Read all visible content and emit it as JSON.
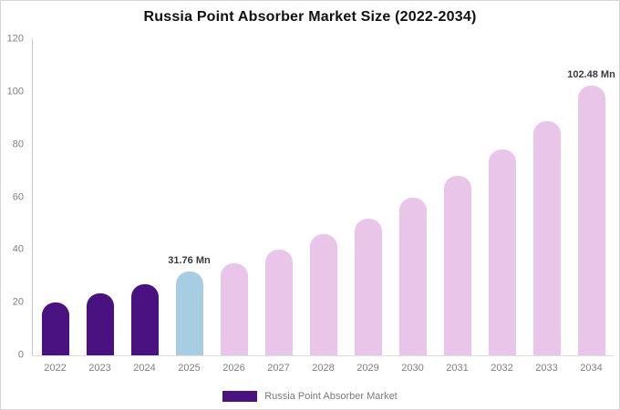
{
  "title": "Russia Point Absorber Market Size (2022-2034)",
  "legend": {
    "label": "Russia Point Absorber Market",
    "color": "#4a1280"
  },
  "chart_data": {
    "type": "bar",
    "title": "Russia Point Absorber Market Size (2022-2034)",
    "xlabel": "",
    "ylabel": "",
    "categories": [
      "2022",
      "2023",
      "2024",
      "2025",
      "2026",
      "2027",
      "2028",
      "2029",
      "2030",
      "2031",
      "2032",
      "2033",
      "2034"
    ],
    "values": [
      20,
      23.5,
      27,
      31.76,
      35,
      40,
      46,
      52,
      60,
      68,
      78,
      89,
      102.48
    ],
    "value_labels": [
      "",
      "",
      "",
      "31.76 Mn",
      "",
      "",
      "",
      "",
      "",
      "",
      "",
      "",
      "102.48 Mn"
    ],
    "bar_colors": [
      "#4a1280",
      "#4a1280",
      "#4a1280",
      "#a7cde2",
      "#e9c6e9",
      "#e9c6e9",
      "#e9c6e9",
      "#e9c6e9",
      "#e9c6e9",
      "#e9c6e9",
      "#e9c6e9",
      "#e9c6e9",
      "#e9c6e9"
    ],
    "ylim": [
      0,
      120
    ],
    "yticks": [
      0,
      20,
      40,
      60,
      80,
      100,
      120
    ],
    "grid": false,
    "legend_position": "bottom",
    "series_name": "Russia Point Absorber Market",
    "unit": "Mn"
  }
}
